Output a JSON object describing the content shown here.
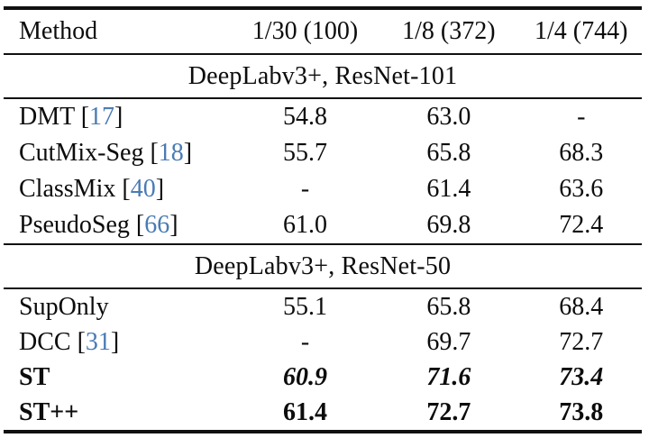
{
  "colors": {
    "citation": "#4a7bb5",
    "rule": "#111111",
    "text": "#0c0c0c"
  },
  "table": {
    "columns": [
      "Method",
      "1/30 (100)",
      "1/8 (372)",
      "1/4 (744)"
    ],
    "sections": [
      {
        "title": "DeepLabv3+, ResNet-101",
        "rows": [
          {
            "prefix": "DMT [",
            "cite": "17",
            "suffix": "]",
            "values": [
              "54.8",
              "63.0",
              "-"
            ]
          },
          {
            "prefix": "CutMix-Seg [",
            "cite": "18",
            "suffix": "]",
            "values": [
              "55.7",
              "65.8",
              "68.3"
            ]
          },
          {
            "prefix": "ClassMix [",
            "cite": "40",
            "suffix": "]",
            "values": [
              "-",
              "61.4",
              "63.6"
            ]
          },
          {
            "prefix": "PseudoSeg [",
            "cite": "66",
            "suffix": "]",
            "values": [
              "61.0",
              "69.8",
              "72.4"
            ]
          }
        ]
      },
      {
        "title": "DeepLabv3+, ResNet-50",
        "rows": [
          {
            "prefix": "SupOnly",
            "cite": "",
            "suffix": "",
            "values": [
              "55.1",
              "65.8",
              "68.4"
            ]
          },
          {
            "prefix": "DCC [",
            "cite": "31",
            "suffix": "]",
            "values": [
              "-",
              "69.7",
              "72.7"
            ]
          },
          {
            "prefix": "ST",
            "cite": "",
            "suffix": "",
            "values": [
              "60.9",
              "71.6",
              "73.4"
            ]
          },
          {
            "prefix": "ST++",
            "cite": "",
            "suffix": "",
            "values": [
              "61.4",
              "72.7",
              "73.8"
            ]
          }
        ]
      }
    ]
  }
}
